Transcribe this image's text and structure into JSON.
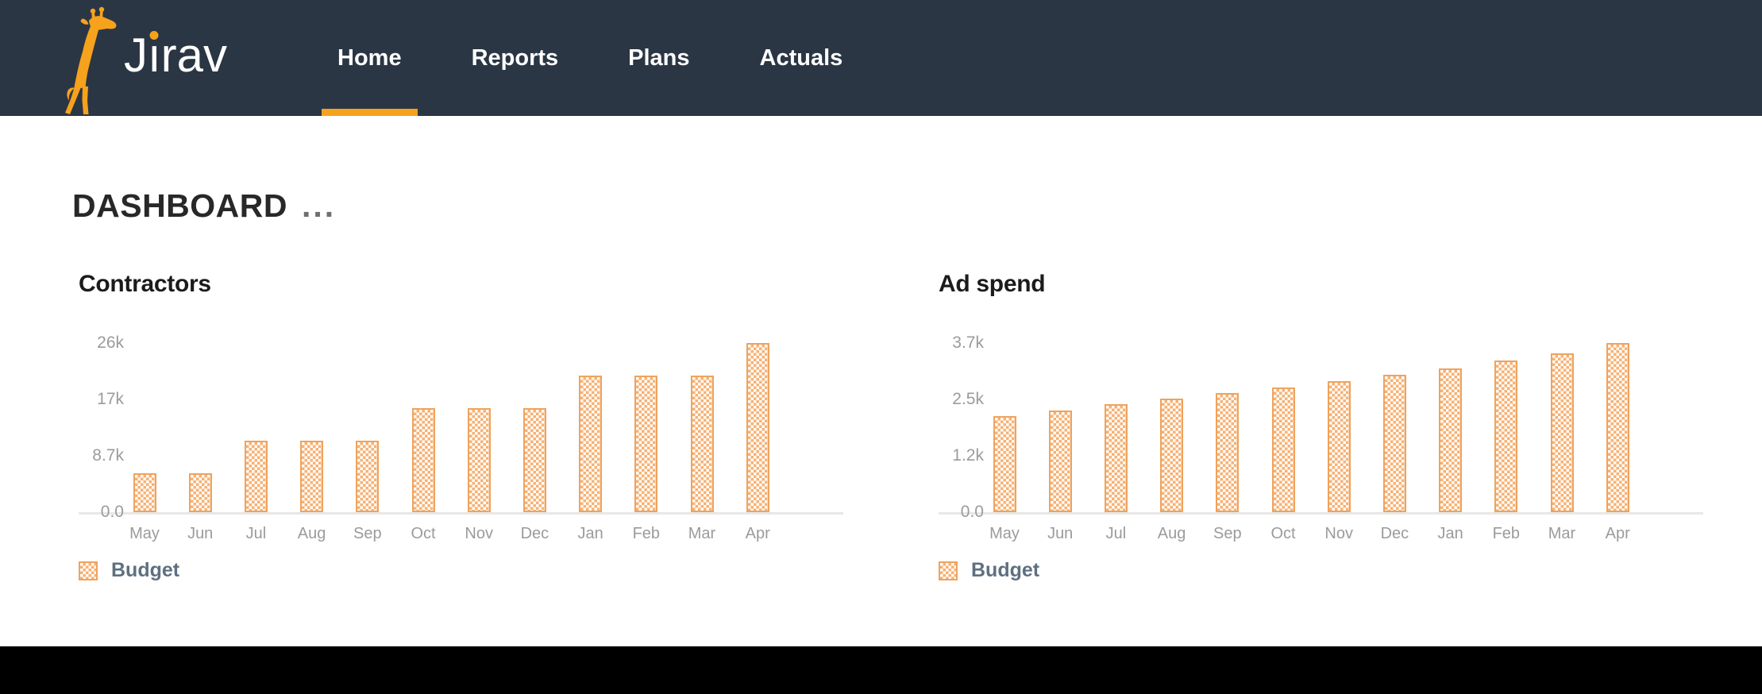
{
  "nav": {
    "brand": "Jirav",
    "items": [
      {
        "label": "Home",
        "active": true
      },
      {
        "label": "Reports",
        "active": false
      },
      {
        "label": "Plans",
        "active": false
      },
      {
        "label": "Actuals",
        "active": false
      }
    ]
  },
  "page": {
    "title": "DASHBOARD",
    "menu_dots": "..."
  },
  "colors": {
    "accent_orange": "#F6A21C",
    "bar_border": "#EFA35C",
    "bar_fill": "#F7B173",
    "navbar_background": "#2B3644",
    "legend_text": "#5E7080",
    "axis_label": "#9B9B9B",
    "footer": "#000000"
  },
  "chart_data": [
    {
      "type": "bar",
      "title": "Contractors",
      "categories": [
        "May",
        "Jun",
        "Jul",
        "Aug",
        "Sep",
        "Oct",
        "Nov",
        "Dec",
        "Jan",
        "Feb",
        "Mar",
        "Apr"
      ],
      "series": [
        {
          "name": "Budget",
          "values": [
            6000,
            6000,
            11000,
            11000,
            11000,
            16000,
            16000,
            16000,
            21000,
            21000,
            21000,
            26000
          ]
        }
      ],
      "ylim": [
        0,
        26000
      ],
      "yticks_bottom_to_top": [
        "0.0",
        "8.7k",
        "17k",
        "26k"
      ],
      "grid": false,
      "legend_position": "bottom-left"
    },
    {
      "type": "bar",
      "title": "Ad spend",
      "categories": [
        "May",
        "Jun",
        "Jul",
        "Aug",
        "Sep",
        "Oct",
        "Nov",
        "Dec",
        "Jan",
        "Feb",
        "Mar",
        "Apr"
      ],
      "series": [
        {
          "name": "Budget",
          "values": [
            2100,
            2230,
            2360,
            2480,
            2600,
            2730,
            2860,
            3000,
            3150,
            3320,
            3480,
            3700
          ]
        }
      ],
      "ylim": [
        0,
        3700
      ],
      "yticks_bottom_to_top": [
        "0.0",
        "1.2k",
        "2.5k",
        "3.7k"
      ],
      "grid": false,
      "legend_position": "bottom-left"
    }
  ]
}
